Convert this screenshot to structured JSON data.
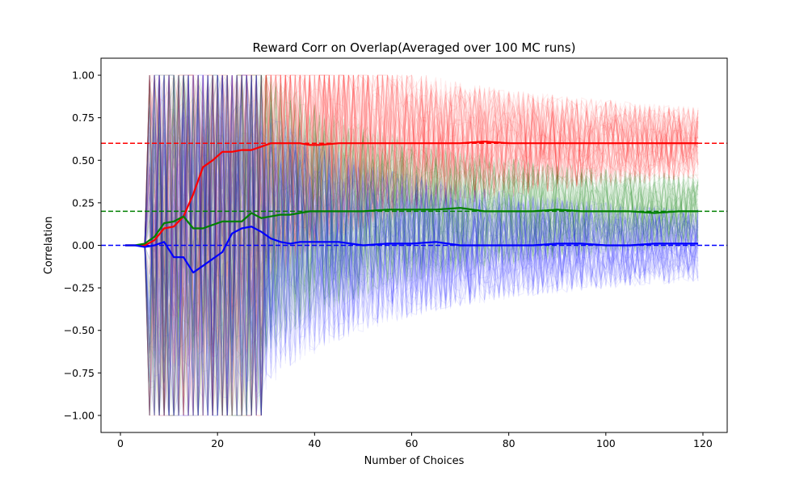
{
  "chart_data": {
    "type": "line",
    "title": "Reward Corr on Overlap(Averaged over 100 MC runs)",
    "xlabel": "Number of Choices",
    "ylabel": "Correlation",
    "xlim": [
      -4,
      125
    ],
    "ylim": [
      -1.1,
      1.1
    ],
    "xticks": [
      0,
      20,
      40,
      60,
      80,
      100,
      120
    ],
    "yticks": [
      -1.0,
      -0.75,
      -0.5,
      -0.25,
      0.0,
      0.25,
      0.5,
      0.75,
      1.0
    ],
    "xtick_labels": [
      "0",
      "20",
      "40",
      "60",
      "80",
      "100",
      "120"
    ],
    "ytick_labels": [
      "−1.00",
      "−0.75",
      "−0.50",
      "−0.25",
      "0.00",
      "0.25",
      "0.50",
      "0.75",
      "1.00"
    ],
    "grid": false,
    "reference_lines": [
      {
        "y": 0.6,
        "color": "#ff0000",
        "style": "dashed"
      },
      {
        "y": 0.2,
        "color": "#008000",
        "style": "dashed"
      },
      {
        "y": 0.0,
        "color": "#0000ff",
        "style": "dashed"
      }
    ],
    "series": [
      {
        "color": "#ff0000",
        "target": 0.6,
        "x": [
          1,
          3,
          5,
          7,
          9,
          11,
          13,
          15,
          17,
          19,
          21,
          23,
          25,
          27,
          29,
          31,
          33,
          35,
          37,
          39,
          41,
          45,
          50,
          55,
          60,
          65,
          70,
          75,
          80,
          85,
          90,
          95,
          100,
          105,
          110,
          115,
          119
        ],
        "values": [
          0.0,
          0.0,
          0.0,
          0.03,
          0.1,
          0.11,
          0.17,
          0.3,
          0.46,
          0.5,
          0.55,
          0.55,
          0.56,
          0.56,
          0.58,
          0.6,
          0.6,
          0.6,
          0.6,
          0.59,
          0.59,
          0.6,
          0.6,
          0.6,
          0.6,
          0.6,
          0.6,
          0.61,
          0.6,
          0.6,
          0.6,
          0.6,
          0.6,
          0.6,
          0.6,
          0.6,
          0.6
        ]
      },
      {
        "color": "#008000",
        "target": 0.2,
        "x": [
          1,
          3,
          5,
          7,
          9,
          11,
          13,
          15,
          17,
          19,
          21,
          23,
          25,
          27,
          29,
          31,
          33,
          35,
          37,
          39,
          41,
          45,
          50,
          55,
          60,
          65,
          70,
          75,
          80,
          85,
          90,
          95,
          100,
          105,
          110,
          115,
          119
        ],
        "values": [
          0.0,
          0.0,
          0.01,
          0.05,
          0.13,
          0.14,
          0.17,
          0.1,
          0.1,
          0.12,
          0.14,
          0.14,
          0.14,
          0.19,
          0.16,
          0.17,
          0.18,
          0.18,
          0.19,
          0.2,
          0.2,
          0.2,
          0.2,
          0.21,
          0.21,
          0.21,
          0.22,
          0.2,
          0.2,
          0.2,
          0.21,
          0.2,
          0.2,
          0.2,
          0.19,
          0.2,
          0.2
        ]
      },
      {
        "color": "#0000ff",
        "target": 0.0,
        "x": [
          1,
          3,
          5,
          7,
          9,
          11,
          13,
          15,
          17,
          19,
          21,
          23,
          25,
          27,
          29,
          31,
          33,
          35,
          37,
          39,
          41,
          45,
          50,
          55,
          60,
          65,
          70,
          75,
          80,
          85,
          90,
          95,
          100,
          105,
          110,
          115,
          119
        ],
        "values": [
          0.0,
          0.0,
          -0.01,
          0.0,
          0.02,
          -0.07,
          -0.07,
          -0.16,
          -0.12,
          -0.08,
          -0.04,
          0.07,
          0.1,
          0.11,
          0.08,
          0.04,
          0.02,
          0.01,
          0.02,
          0.02,
          0.02,
          0.02,
          0.0,
          0.01,
          0.01,
          0.02,
          0.0,
          0.0,
          0.0,
          0.0,
          0.01,
          0.01,
          0.0,
          0.0,
          0.01,
          0.01,
          0.01
        ]
      }
    ]
  }
}
